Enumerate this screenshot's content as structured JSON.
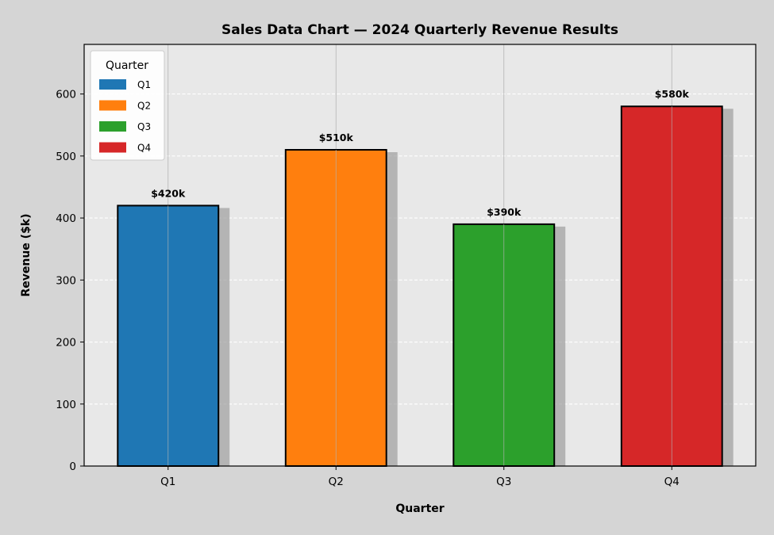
{
  "chart_data": {
    "type": "bar",
    "title": "Sales Data Chart — 2024 Quarterly Revenue Results",
    "xlabel": "Quarter",
    "ylabel": "Revenue ($k)",
    "categories": [
      "Q1",
      "Q2",
      "Q3",
      "Q4"
    ],
    "values": [
      420,
      510,
      390,
      580
    ],
    "data_labels": [
      "$420k",
      "$510k",
      "$390k",
      "$580k"
    ],
    "colors": [
      "#1f77b4",
      "#ff7f0e",
      "#2ca02c",
      "#d62728"
    ],
    "ylim": [
      0,
      680
    ],
    "yticks": [
      0,
      100,
      200,
      300,
      400,
      500,
      600
    ],
    "grid": {
      "y": "dashed white",
      "x": "solid gray"
    },
    "background": "#e8e8e8",
    "figure_background": "#d5d5d5",
    "shadow": true,
    "legend": {
      "title": "Quarter",
      "placement": "top-left",
      "entries": [
        "Q1",
        "Q2",
        "Q3",
        "Q4"
      ]
    }
  }
}
